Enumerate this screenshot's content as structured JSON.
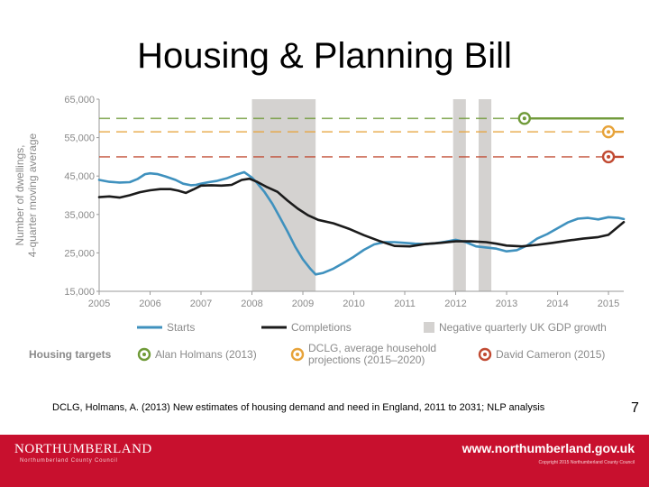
{
  "slide": {
    "title": "Housing & Planning Bill",
    "caption": "DCLG, Holmans, A. (2013) New estimates of housing demand and need in England, 2011 to 2031; NLP analysis",
    "page_number": "7"
  },
  "footer": {
    "brand": "NORTHUMBERLAND",
    "brand_sub": "Northumberland County Council",
    "url": "www.northumberland.gov.uk",
    "copyright": "Copyright 2015 Northumberland County Council"
  },
  "colors": {
    "starts": "#3f91be",
    "completions": "#1b1b1b",
    "recession": "#d4d2d0",
    "holmans": "#6f9a38",
    "dclg": "#e7a33a",
    "cameron": "#c14a32",
    "axis_text": "#8a8a8a",
    "footer": "#c8102e"
  },
  "chart_data": {
    "type": "line",
    "ylabel_lines": [
      "Number of dwellings,",
      "4-quarter moving average"
    ],
    "ylim": [
      15000,
      65000
    ],
    "xlim": [
      2005,
      2015.3
    ],
    "y_ticks": [
      "15,000",
      "25,000",
      "35,000",
      "45,000",
      "55,000",
      "65,000"
    ],
    "y_tick_values": [
      15000,
      25000,
      35000,
      45000,
      55000,
      65000
    ],
    "x_ticks": [
      "2005",
      "2006",
      "2007",
      "2008",
      "2009",
      "2010",
      "2011",
      "2012",
      "2013",
      "2014",
      "2015"
    ],
    "x_tick_values": [
      2005,
      2006,
      2007,
      2008,
      2009,
      2010,
      2011,
      2012,
      2013,
      2014,
      2015
    ],
    "recession_periods": [
      [
        2008.0,
        2009.25
      ],
      [
        2011.95,
        2012.2
      ],
      [
        2012.45,
        2012.7
      ]
    ],
    "series": [
      {
        "name": "Starts",
        "x": [
          2005.0,
          2005.2,
          2005.4,
          2005.6,
          2005.75,
          2005.9,
          2006.0,
          2006.15,
          2006.3,
          2006.5,
          2006.65,
          2006.8,
          2006.9,
          2007.0,
          2007.15,
          2007.3,
          2007.5,
          2007.7,
          2007.85,
          2008.0,
          2008.1,
          2008.25,
          2008.4,
          2008.55,
          2008.7,
          2008.85,
          2009.0,
          2009.15,
          2009.25,
          2009.4,
          2009.6,
          2009.8,
          2010.0,
          2010.2,
          2010.4,
          2010.6,
          2010.8,
          2011.0,
          2011.2,
          2011.4,
          2011.6,
          2011.8,
          2012.0,
          2012.2,
          2012.4,
          2012.6,
          2012.8,
          2013.0,
          2013.2,
          2013.4,
          2013.6,
          2013.8,
          2014.0,
          2014.2,
          2014.4,
          2014.6,
          2014.8,
          2015.0,
          2015.2,
          2015.3
        ],
        "values": [
          44000,
          43500,
          43300,
          43400,
          44200,
          45500,
          45700,
          45500,
          44900,
          44000,
          43000,
          42600,
          42700,
          43000,
          43400,
          43700,
          44400,
          45400,
          46000,
          44600,
          43200,
          40800,
          37800,
          34200,
          30500,
          26600,
          23300,
          20800,
          19400,
          19800,
          20900,
          22400,
          24000,
          25800,
          27200,
          27800,
          27800,
          27600,
          27400,
          27300,
          27500,
          27900,
          28400,
          27800,
          26700,
          26400,
          26100,
          25400,
          25700,
          26900,
          28700,
          29900,
          31400,
          32900,
          33900,
          34100,
          33700,
          34300,
          34100,
          33800
        ]
      },
      {
        "name": "Completions",
        "x": [
          2005.0,
          2005.2,
          2005.4,
          2005.6,
          2005.8,
          2006.0,
          2006.2,
          2006.4,
          2006.55,
          2006.7,
          2006.85,
          2007.0,
          2007.2,
          2007.4,
          2007.6,
          2007.8,
          2007.95,
          2008.1,
          2008.3,
          2008.5,
          2008.7,
          2008.9,
          2009.1,
          2009.3,
          2009.6,
          2009.9,
          2010.2,
          2010.5,
          2010.8,
          2011.1,
          2011.4,
          2011.7,
          2012.0,
          2012.3,
          2012.6,
          2012.8,
          2013.0,
          2013.3,
          2013.6,
          2013.9,
          2014.2,
          2014.5,
          2014.8,
          2015.0,
          2015.3
        ],
        "values": [
          39500,
          39700,
          39400,
          40000,
          40800,
          41300,
          41600,
          41600,
          41200,
          40600,
          41500,
          42500,
          42600,
          42500,
          42700,
          44000,
          44300,
          43500,
          42100,
          40900,
          38600,
          36500,
          34800,
          33600,
          32700,
          31300,
          29600,
          28100,
          26800,
          26700,
          27300,
          27600,
          28000,
          28000,
          27800,
          27400,
          26900,
          26700,
          27100,
          27600,
          28200,
          28700,
          29100,
          29700,
          33000
        ]
      }
    ],
    "housing_targets": {
      "label": "Housing targets",
      "items": [
        {
          "name": "Alan Holmans (2013)",
          "value": 60000,
          "color_key": "holmans",
          "start": 2013.35
        },
        {
          "name_lines": [
            "DCLG, average household",
            "projections (2015–2020)"
          ],
          "value": 56500,
          "color_key": "dclg",
          "start": 2015.0
        },
        {
          "name": "David Cameron (2015)",
          "value": 50000,
          "color_key": "cameron",
          "start": 2015.0
        }
      ]
    },
    "legend": {
      "starts": "Starts",
      "completions": "Completions",
      "recession": "Negative quarterly UK GDP growth"
    }
  }
}
